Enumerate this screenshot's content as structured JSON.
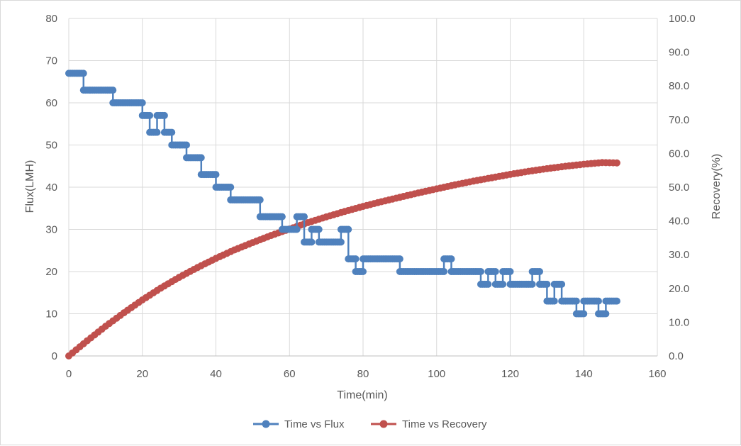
{
  "chart_data": {
    "type": "scatter",
    "title": "",
    "xlabel": "Time(min)",
    "ylabel": "Flux(LMH)",
    "y2label": "Recovery(%)",
    "xlim": [
      0,
      160
    ],
    "ylim": [
      0,
      80
    ],
    "y2lim": [
      0,
      100
    ],
    "xticks": [
      0,
      20,
      40,
      60,
      80,
      100,
      120,
      140,
      160
    ],
    "yticks": [
      0,
      10,
      20,
      30,
      40,
      50,
      60,
      70,
      80
    ],
    "y2ticks": [
      "0.0",
      "10.0",
      "20.0",
      "30.0",
      "40.0",
      "50.0",
      "60.0",
      "70.0",
      "80.0",
      "90.0",
      "100.0"
    ],
    "grid": true,
    "legend_position": "bottom",
    "series": [
      {
        "name": "Time vs Flux",
        "axis": "left",
        "color": "#4f81bd",
        "points": [
          [
            0,
            67
          ],
          [
            4,
            67
          ],
          [
            4,
            63
          ],
          [
            12,
            63
          ],
          [
            12,
            60
          ],
          [
            20,
            60
          ],
          [
            20,
            57
          ],
          [
            22,
            57
          ],
          [
            22,
            53
          ],
          [
            24,
            53
          ],
          [
            24,
            57
          ],
          [
            26,
            57
          ],
          [
            26,
            53
          ],
          [
            28,
            53
          ],
          [
            28,
            50
          ],
          [
            32,
            50
          ],
          [
            32,
            47
          ],
          [
            36,
            47
          ],
          [
            36,
            43
          ],
          [
            40,
            43
          ],
          [
            40,
            40
          ],
          [
            44,
            40
          ],
          [
            44,
            37
          ],
          [
            52,
            37
          ],
          [
            52,
            33
          ],
          [
            58,
            33
          ],
          [
            58,
            30
          ],
          [
            62,
            30
          ],
          [
            62,
            33
          ],
          [
            64,
            33
          ],
          [
            64,
            27
          ],
          [
            66,
            27
          ],
          [
            66,
            30
          ],
          [
            68,
            30
          ],
          [
            68,
            27
          ],
          [
            74,
            27
          ],
          [
            74,
            30
          ],
          [
            76,
            30
          ],
          [
            76,
            23
          ],
          [
            78,
            23
          ],
          [
            78,
            20
          ],
          [
            80,
            20
          ],
          [
            80,
            23
          ],
          [
            90,
            23
          ],
          [
            90,
            20
          ],
          [
            102,
            20
          ],
          [
            102,
            23
          ],
          [
            104,
            23
          ],
          [
            104,
            20
          ],
          [
            112,
            20
          ],
          [
            112,
            17
          ],
          [
            114,
            17
          ],
          [
            114,
            20
          ],
          [
            116,
            20
          ],
          [
            116,
            17
          ],
          [
            118,
            17
          ],
          [
            118,
            20
          ],
          [
            120,
            20
          ],
          [
            120,
            17
          ],
          [
            126,
            17
          ],
          [
            126,
            20
          ],
          [
            128,
            20
          ],
          [
            128,
            17
          ],
          [
            130,
            17
          ],
          [
            130,
            13
          ],
          [
            132,
            13
          ],
          [
            132,
            17
          ],
          [
            134,
            17
          ],
          [
            134,
            13
          ],
          [
            138,
            13
          ],
          [
            138,
            10
          ],
          [
            140,
            10
          ],
          [
            140,
            13
          ],
          [
            144,
            13
          ],
          [
            144,
            10
          ],
          [
            146,
            10
          ],
          [
            146,
            13
          ],
          [
            149,
            13
          ]
        ]
      },
      {
        "name": "Time vs Recovery",
        "axis": "right",
        "color": "#c0504d",
        "points": [
          [
            0,
            0.0
          ],
          [
            5,
            4.5
          ],
          [
            10,
            8.8
          ],
          [
            15,
            12.8
          ],
          [
            20,
            16.6
          ],
          [
            25,
            20.1
          ],
          [
            30,
            23.3
          ],
          [
            35,
            26.2
          ],
          [
            40,
            28.9
          ],
          [
            45,
            31.4
          ],
          [
            50,
            33.6
          ],
          [
            55,
            35.7
          ],
          [
            60,
            37.6
          ],
          [
            65,
            39.5
          ],
          [
            70,
            41.2
          ],
          [
            75,
            42.8
          ],
          [
            80,
            44.3
          ],
          [
            85,
            45.7
          ],
          [
            90,
            47.0
          ],
          [
            95,
            48.3
          ],
          [
            100,
            49.5
          ],
          [
            105,
            50.7
          ],
          [
            110,
            51.8
          ],
          [
            115,
            52.8
          ],
          [
            120,
            53.8
          ],
          [
            125,
            54.7
          ],
          [
            130,
            55.5
          ],
          [
            135,
            56.2
          ],
          [
            140,
            56.8
          ],
          [
            145,
            57.3
          ],
          [
            149,
            57.2
          ]
        ]
      }
    ]
  }
}
